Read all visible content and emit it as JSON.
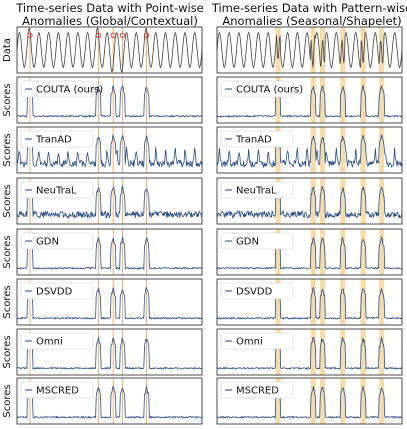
{
  "chart_data": {
    "type": "line",
    "columns": [
      {
        "title_line1": "Time-series Data with Point-wise",
        "title_line2": "Anomalies (Global/Contextual)",
        "anomaly_marker_style": "lines",
        "anomalies": [
          0.07,
          0.44,
          0.52,
          0.57,
          0.7
        ],
        "highlight_color": "#f0a864"
      },
      {
        "title_line1": "Time-series Data with Pattern-wise",
        "title_line2": "Anomalies (Seasonal/Shapelet)",
        "anomaly_marker_style": "bands",
        "anomalies": [
          0.33,
          0.52,
          0.57,
          0.68,
          0.79,
          0.89
        ],
        "highlight_color": "#f5dcaa"
      }
    ],
    "rows": [
      {
        "kind": "data",
        "ylabel": "Data"
      },
      {
        "kind": "scores",
        "ylabel": "Scores",
        "legend": "COUTA (ours)"
      },
      {
        "kind": "scores",
        "ylabel": "Scores",
        "legend": "TranAD"
      },
      {
        "kind": "scores",
        "ylabel": "Scores",
        "legend": "NeuTraL"
      },
      {
        "kind": "scores",
        "ylabel": "Scores",
        "legend": "GDN"
      },
      {
        "kind": "scores",
        "ylabel": "Scores",
        "legend": "DSVDD"
      },
      {
        "kind": "scores",
        "ylabel": "Scores",
        "legend": "Omni"
      },
      {
        "kind": "scores",
        "ylabel": "Scores",
        "legend": "MSCRED"
      }
    ],
    "colors": {
      "data_line": "#444444",
      "score_line": "#2b4f86",
      "anomaly_point": "#e03030"
    }
  }
}
